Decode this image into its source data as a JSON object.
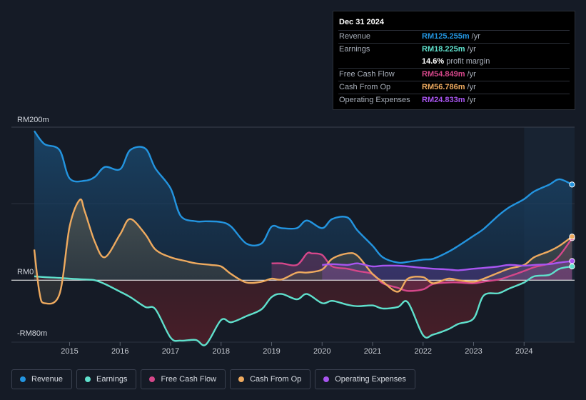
{
  "tooltip": {
    "date": "Dec 31 2024",
    "revenue_label": "Revenue",
    "revenue_value": "RM125.255m",
    "earnings_label": "Earnings",
    "earnings_value": "RM18.225m",
    "profit_margin_value": "14.6%",
    "profit_margin_text": "profit margin",
    "fcf_label": "Free Cash Flow",
    "fcf_value": "RM54.849m",
    "cfo_label": "Cash From Op",
    "cfo_value": "RM56.786m",
    "opex_label": "Operating Expenses",
    "opex_value": "RM24.833m",
    "unit": "/yr"
  },
  "legend": [
    {
      "label": "Revenue",
      "color": "#2394df"
    },
    {
      "label": "Earnings",
      "color": "#5fe0cc"
    },
    {
      "label": "Free Cash Flow",
      "color": "#d5478a"
    },
    {
      "label": "Cash From Op",
      "color": "#eeaa5f"
    },
    {
      "label": "Operating Expenses",
      "color": "#a855f0"
    }
  ],
  "chart_data": {
    "type": "area",
    "title": "",
    "ylabel": "",
    "y_top_label": "RM200m",
    "y_zero_label": "RM0",
    "y_bottom_label": "-RM80m",
    "ylim": [
      -80,
      200
    ],
    "xlim": [
      2014.3,
      2025.0
    ],
    "x_tick_labels": [
      "2015",
      "2016",
      "2017",
      "2018",
      "2019",
      "2020",
      "2021",
      "2022",
      "2023",
      "2024"
    ],
    "x_ticks": [
      2015,
      2016,
      2017,
      2018,
      2019,
      2020,
      2021,
      2022,
      2023,
      2024
    ],
    "forecast_start": 2024.0,
    "series": [
      {
        "name": "Revenue",
        "color": "#2394df",
        "x": [
          2014.3,
          2014.5,
          2014.8,
          2015.0,
          2015.3,
          2015.5,
          2015.7,
          2016.0,
          2016.2,
          2016.5,
          2016.7,
          2017.0,
          2017.2,
          2017.5,
          2017.7,
          2018.0,
          2018.2,
          2018.5,
          2018.8,
          2019.0,
          2019.2,
          2019.5,
          2019.7,
          2020.0,
          2020.2,
          2020.5,
          2020.7,
          2021.0,
          2021.2,
          2021.5,
          2021.7,
          2022.0,
          2022.2,
          2022.5,
          2022.7,
          2023.0,
          2023.2,
          2023.5,
          2023.7,
          2024.0,
          2024.2,
          2024.5,
          2024.7,
          2024.95
        ],
        "values": [
          195,
          178,
          170,
          133,
          130,
          135,
          148,
          145,
          170,
          172,
          146,
          120,
          84,
          77,
          77,
          76,
          70,
          48,
          48,
          70,
          68,
          68,
          78,
          68,
          80,
          82,
          65,
          45,
          30,
          23,
          24,
          27,
          28,
          37,
          45,
          58,
          67,
          85,
          95,
          106,
          116,
          125,
          132,
          125
        ]
      },
      {
        "name": "Earnings",
        "color": "#5fe0cc",
        "x": [
          2014.3,
          2014.5,
          2014.8,
          2015.0,
          2015.3,
          2015.5,
          2015.7,
          2016.0,
          2016.2,
          2016.5,
          2016.7,
          2017.0,
          2017.2,
          2017.5,
          2017.7,
          2018.0,
          2018.2,
          2018.5,
          2018.8,
          2019.0,
          2019.2,
          2019.5,
          2019.7,
          2020.0,
          2020.2,
          2020.5,
          2020.7,
          2021.0,
          2021.2,
          2021.5,
          2021.7,
          2022.0,
          2022.2,
          2022.5,
          2022.7,
          2023.0,
          2023.2,
          2023.5,
          2023.7,
          2024.0,
          2024.2,
          2024.5,
          2024.7,
          2024.95
        ],
        "values": [
          5,
          4,
          3,
          2,
          1,
          0,
          -5,
          -15,
          -22,
          -35,
          -38,
          -75,
          -79,
          -78,
          -84,
          -52,
          -55,
          -47,
          -38,
          -22,
          -18,
          -25,
          -18,
          -30,
          -27,
          -32,
          -34,
          -33,
          -37,
          -35,
          -29,
          -72,
          -71,
          -64,
          -57,
          -50,
          -20,
          -17,
          -11,
          -3,
          5,
          7,
          15,
          18
        ]
      },
      {
        "name": "Free Cash Flow",
        "color": "#d5478a",
        "x": [
          2019.0,
          2019.2,
          2019.5,
          2019.7,
          2019.8,
          2020.0,
          2020.2,
          2020.5,
          2020.7,
          2021.0,
          2021.2,
          2021.5,
          2021.7,
          2022.0,
          2022.2,
          2022.5,
          2022.7,
          2023.0,
          2023.2,
          2023.5,
          2023.7,
          2024.0,
          2024.2,
          2024.5,
          2024.7,
          2024.95
        ],
        "values": [
          22,
          22,
          20,
          35,
          35,
          33,
          18,
          15,
          12,
          8,
          -4,
          -10,
          -14,
          -12,
          -5,
          -3,
          -3,
          -4,
          -2,
          1,
          5,
          12,
          17,
          22,
          32,
          55
        ]
      },
      {
        "name": "Cash From Op",
        "color": "#eeaa5f",
        "x": [
          2014.3,
          2014.4,
          2014.5,
          2014.8,
          2015.0,
          2015.2,
          2015.3,
          2015.5,
          2015.7,
          2016.0,
          2016.2,
          2016.5,
          2016.7,
          2017.0,
          2017.3,
          2017.5,
          2017.8,
          2018.0,
          2018.2,
          2018.5,
          2018.8,
          2019.0,
          2019.2,
          2019.5,
          2019.7,
          2020.0,
          2020.2,
          2020.5,
          2020.7,
          2021.0,
          2021.2,
          2021.5,
          2021.7,
          2022.0,
          2022.2,
          2022.5,
          2022.7,
          2023.0,
          2023.2,
          2023.5,
          2023.7,
          2024.0,
          2024.2,
          2024.5,
          2024.7,
          2024.95
        ],
        "values": [
          40,
          -15,
          -30,
          -18,
          70,
          105,
          90,
          50,
          30,
          60,
          80,
          60,
          40,
          30,
          25,
          22,
          20,
          18,
          8,
          -3,
          -2,
          2,
          1,
          10,
          10,
          14,
          28,
          35,
          32,
          8,
          -2,
          -15,
          2,
          4,
          -4,
          2,
          0,
          -2,
          2,
          10,
          15,
          20,
          30,
          38,
          45,
          57
        ]
      },
      {
        "name": "Operating Expenses",
        "color": "#a855f0",
        "x": [
          2020.0,
          2020.2,
          2020.5,
          2020.7,
          2021.0,
          2021.2,
          2021.5,
          2021.7,
          2022.0,
          2022.2,
          2022.5,
          2022.7,
          2023.0,
          2023.2,
          2023.5,
          2023.7,
          2024.0,
          2024.2,
          2024.5,
          2024.7,
          2024.95
        ],
        "values": [
          20,
          21,
          20,
          22,
          18,
          19,
          19,
          18,
          16,
          15,
          14,
          13,
          15,
          16,
          18,
          20,
          19,
          20,
          21,
          23,
          25
        ]
      }
    ]
  }
}
